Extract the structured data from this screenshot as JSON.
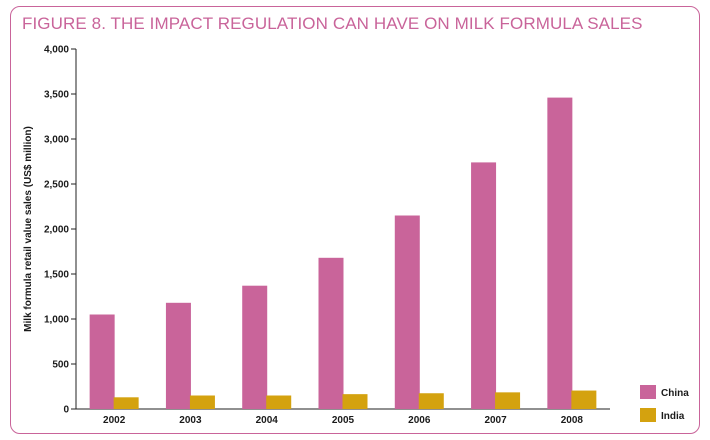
{
  "chart_data": {
    "type": "bar",
    "title": "FIGURE 8. THE IMPACT REGULATION CAN HAVE ON MILK FORMULA SALES",
    "xlabel": "",
    "ylabel": "Milk formula retail value sales (US$ million)",
    "ylim": [
      0,
      4000
    ],
    "yticks": [
      0,
      500,
      1000,
      1500,
      2000,
      2500,
      3000,
      3500,
      4000
    ],
    "ytick_labels": [
      "0",
      "500",
      "1,000",
      "1,500",
      "2,000",
      "2,500",
      "3,000",
      "3,500",
      "4,000"
    ],
    "categories": [
      "2002",
      "2003",
      "2004",
      "2005",
      "2006",
      "2007",
      "2008"
    ],
    "series": [
      {
        "name": "China",
        "color": "#c9649a",
        "values": [
          1050,
          1180,
          1370,
          1680,
          2150,
          2740,
          3460
        ]
      },
      {
        "name": "India",
        "color": "#d4a20f",
        "values": [
          130,
          150,
          150,
          165,
          175,
          185,
          205
        ]
      }
    ],
    "legend": "bottom-right"
  }
}
